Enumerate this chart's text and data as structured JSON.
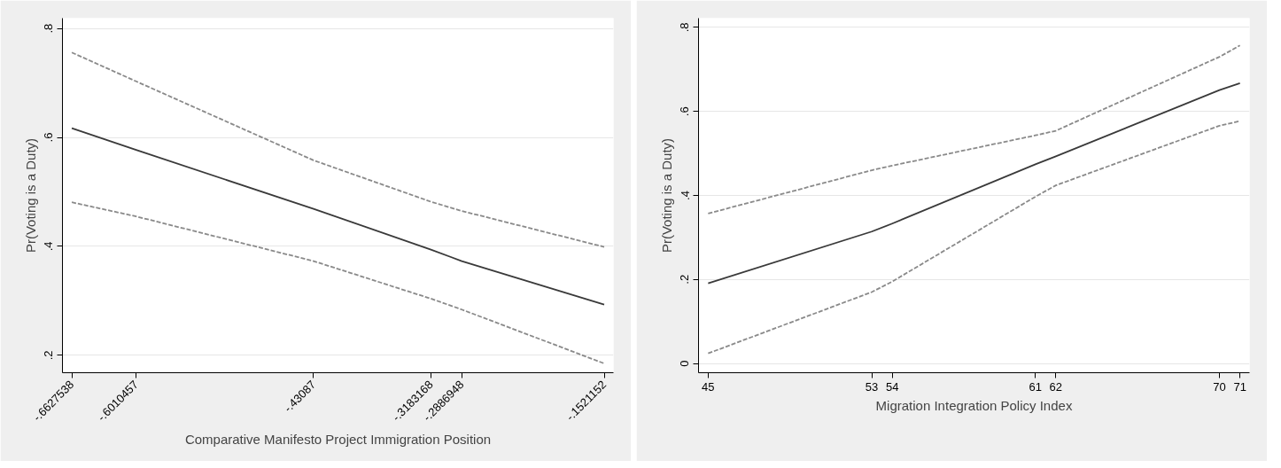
{
  "chart_data": [
    {
      "type": "line",
      "xlabel": "Comparative Manifesto Project Immigration Position",
      "ylabel": "Pr(Voting is a Duty)",
      "x": [
        -0.6627538,
        -0.6010457,
        -0.43087,
        -0.3183168,
        -0.2886948,
        -0.1521152
      ],
      "series": [
        {
          "color": "#3a3a3a",
          "line_style": "solid",
          "values": [
            0.617,
            0.577,
            0.469,
            0.394,
            0.373,
            0.293
          ]
        },
        {
          "color": "#8a8a8a",
          "line_style": "dashed",
          "values": [
            0.756,
            0.703,
            0.558,
            0.482,
            0.465,
            0.399
          ]
        },
        {
          "color": "#8a8a8a",
          "line_style": "dashed",
          "values": [
            0.481,
            0.455,
            0.373,
            0.304,
            0.284,
            0.185
          ]
        }
      ],
      "xlim": [
        -0.6717,
        -0.1432
      ],
      "ylim": [
        0.168,
        0.819
      ],
      "xticks": [
        {
          "value": -0.6627538,
          "label": "-.6627538"
        },
        {
          "value": -0.6010457,
          "label": "-.6010457"
        },
        {
          "value": -0.43087,
          "label": "-.43087"
        },
        {
          "value": -0.3183168,
          "label": "-.3183168"
        },
        {
          "value": -0.2886948,
          "label": "-.2886948"
        },
        {
          "value": -0.1521152,
          "label": "-.1521152"
        }
      ],
      "yticks": [
        {
          "value": 0.2,
          "label": ".2"
        },
        {
          "value": 0.4,
          "label": ".4"
        },
        {
          "value": 0.6,
          "label": ".6"
        },
        {
          "value": 0.8,
          "label": ".8"
        }
      ],
      "grid": "y"
    },
    {
      "type": "line",
      "xlabel": "Migration Integration Policy Index",
      "ylabel": "Pr(Voting is a Duty)",
      "x": [
        45,
        53,
        54,
        61,
        62,
        70,
        71
      ],
      "series": [
        {
          "color": "#3a3a3a",
          "line_style": "solid",
          "values": [
            0.191,
            0.314,
            0.333,
            0.474,
            0.493,
            0.651,
            0.667
          ]
        },
        {
          "color": "#8a8a8a",
          "line_style": "dashed",
          "values": [
            0.357,
            0.46,
            0.471,
            0.543,
            0.554,
            0.73,
            0.757
          ]
        },
        {
          "color": "#8a8a8a",
          "line_style": "dashed",
          "values": [
            0.024,
            0.17,
            0.195,
            0.397,
            0.424,
            0.566,
            0.577
          ]
        }
      ],
      "xlim": [
        44.53,
        71.47
      ],
      "ylim": [
        -0.022,
        0.822
      ],
      "xticks": [
        45,
        53,
        54,
        61,
        62,
        70,
        71
      ],
      "yticks": [
        0,
        {
          "value": 0.2,
          "label": ".2"
        },
        {
          "value": 0.4,
          "label": ".4"
        },
        {
          "value": 0.6,
          "label": ".6"
        },
        {
          "value": 0.8,
          "label": ".8"
        }
      ],
      "grid": "y"
    }
  ]
}
